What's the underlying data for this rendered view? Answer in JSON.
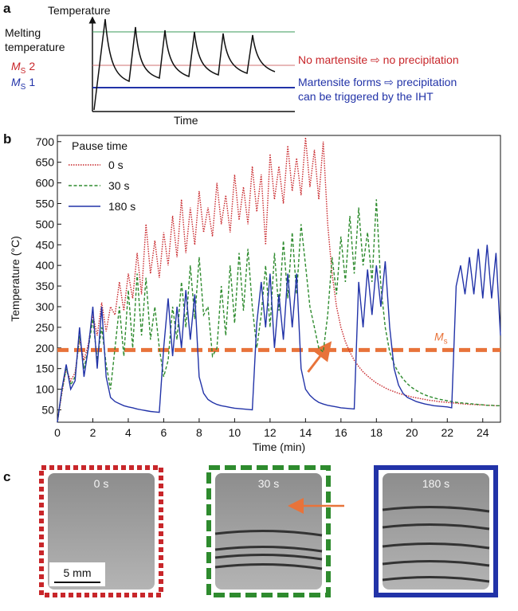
{
  "panel_a": {
    "letter": "a",
    "y_label": "Temperature",
    "x_label": "Time",
    "melting_1": "Melting",
    "melting_2": "temperature",
    "ms2_main": "M",
    "ms2_sub": "S",
    "ms2_num": "2",
    "ms1_main": "M",
    "ms1_sub": "S",
    "ms1_num": "1",
    "note_red": "No martensite ⇨ no precipitation",
    "note_blue_1": "Martensite forms ⇨ precipitation",
    "note_blue_2": "can be triggered by the IHT"
  },
  "panel_b_letter": "b",
  "chart_data": {
    "type": "line",
    "x_label": "Time (min)",
    "y_label": "Temperature (°C)",
    "legend_title": "Pause time",
    "legend": "upper-left",
    "xlim": [
      0,
      25
    ],
    "ylim": [
      20,
      715
    ],
    "xticks": [
      0,
      2,
      4,
      6,
      8,
      10,
      12,
      14,
      16,
      18,
      20,
      22,
      24
    ],
    "yticks": [
      50,
      100,
      150,
      200,
      250,
      300,
      350,
      400,
      450,
      500,
      550,
      600,
      650,
      700
    ],
    "threshold": {
      "value": 195,
      "label_main": "M",
      "label_sub": "s",
      "color": "#e8733a"
    },
    "arrow_at": [
      15.4,
      215
    ],
    "x": [
      0,
      0.25,
      0.5,
      0.75,
      1,
      1.25,
      1.5,
      1.75,
      2,
      2.25,
      2.5,
      2.75,
      3,
      3.25,
      3.5,
      3.75,
      4,
      4.25,
      4.5,
      4.75,
      5,
      5.25,
      5.5,
      5.75,
      6,
      6.25,
      6.5,
      6.75,
      7,
      7.25,
      7.5,
      7.75,
      8,
      8.25,
      8.5,
      8.75,
      9,
      9.25,
      9.5,
      9.75,
      10,
      10.25,
      10.5,
      10.75,
      11,
      11.25,
      11.5,
      11.75,
      12,
      12.25,
      12.5,
      12.75,
      13,
      13.25,
      13.5,
      13.75,
      14,
      14.25,
      14.5,
      14.75,
      15,
      15.25,
      15.5,
      15.75,
      16,
      16.25,
      16.5,
      16.75,
      17,
      17.25,
      17.5,
      17.75,
      18,
      18.25,
      18.5,
      18.75,
      19,
      19.25,
      19.5,
      19.75,
      20,
      20.25,
      20.5,
      20.75,
      21,
      21.25,
      21.5,
      21.75,
      22,
      22.25,
      22.5,
      22.75,
      23,
      23.25,
      23.5,
      23.75,
      24,
      24.25,
      24.5,
      24.75,
      25
    ],
    "series": [
      {
        "name": "0 s",
        "color": "#c8262a",
        "dash": "1.5,1.5",
        "values": [
          20,
          90,
          150,
          120,
          140,
          220,
          170,
          210,
          280,
          230,
          310,
          240,
          300,
          280,
          360,
          290,
          380,
          320,
          430,
          330,
          500,
          380,
          460,
          370,
          480,
          400,
          520,
          420,
          560,
          430,
          540,
          450,
          580,
          480,
          540,
          470,
          600,
          500,
          570,
          480,
          620,
          510,
          590,
          500,
          640,
          530,
          620,
          450,
          670,
          560,
          640,
          550,
          690,
          580,
          660,
          570,
          710,
          590,
          680,
          560,
          700,
          500,
          380,
          300,
          250,
          215,
          190,
          170,
          155,
          142,
          132,
          123,
          115,
          109,
          103,
          98,
          94,
          90,
          87,
          84,
          81,
          79,
          77,
          75,
          73,
          72,
          70,
          69,
          68,
          67,
          66,
          65,
          64,
          63,
          63,
          62,
          62,
          61,
          61,
          60,
          60
        ]
      },
      {
        "name": "30 s",
        "color": "#2e8b2e",
        "dash": "4,2.5",
        "values": [
          20,
          95,
          150,
          110,
          130,
          230,
          150,
          200,
          270,
          170,
          250,
          160,
          100,
          200,
          300,
          180,
          340,
          200,
          380,
          230,
          370,
          220,
          300,
          200,
          130,
          170,
          300,
          220,
          360,
          250,
          400,
          270,
          420,
          280,
          300,
          180,
          200,
          350,
          230,
          400,
          260,
          430,
          290,
          440,
          300,
          200,
          280,
          400,
          250,
          430,
          290,
          460,
          320,
          480,
          330,
          500,
          400,
          300,
          250,
          200,
          190,
          280,
          420,
          330,
          470,
          360,
          520,
          380,
          540,
          400,
          480,
          360,
          560,
          350,
          250,
          190,
          160,
          140,
          125,
          113,
          104,
          97,
          91,
          86,
          82,
          79,
          76,
          74,
          72,
          70,
          68,
          67,
          66,
          65,
          64,
          63,
          62,
          61,
          61,
          60,
          60
        ]
      },
      {
        "name": "180 s",
        "color": "#2233a8",
        "dash": "",
        "values": [
          20,
          100,
          160,
          100,
          120,
          250,
          130,
          200,
          300,
          150,
          300,
          130,
          80,
          70,
          65,
          60,
          57,
          55,
          52,
          50,
          48,
          46,
          45,
          44,
          200,
          320,
          180,
          300,
          200,
          340,
          220,
          330,
          130,
          90,
          75,
          68,
          63,
          60,
          58,
          56,
          54,
          53,
          52,
          51,
          50,
          260,
          360,
          250,
          380,
          200,
          330,
          220,
          380,
          250,
          380,
          150,
          100,
          85,
          75,
          68,
          64,
          61,
          59,
          57,
          55,
          54,
          53,
          52,
          360,
          250,
          390,
          280,
          400,
          300,
          410,
          250,
          150,
          110,
          90,
          80,
          75,
          70,
          67,
          64,
          62,
          60,
          59,
          58,
          57,
          55,
          350,
          400,
          330,
          420,
          330,
          440,
          320,
          450,
          320,
          430,
          230
        ]
      }
    ]
  },
  "panel_c": {
    "letter": "c",
    "labels": [
      "0 s",
      "30 s",
      "180 s"
    ],
    "scale_bar": "5 mm"
  }
}
